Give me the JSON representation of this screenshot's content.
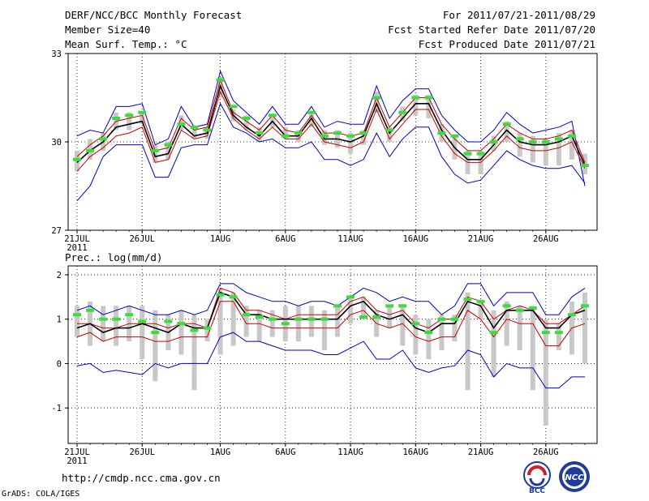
{
  "header": {
    "title": "DERF/NCC/BCC Monthly Forecast",
    "member": "Member Size=40",
    "variable": "Mean Surf. Temp.: °C",
    "period": "For 2011/07/21-2011/08/29",
    "start": "Fcst Started Refer Date 2011/07/20",
    "produced": "Fcst Produced Date 2011/07/21"
  },
  "footer": {
    "url": "http://cmdp.ncc.cma.gov.cn",
    "grads": "GrADS: COLA/IGES",
    "logo_bcc": "BCC",
    "logo_ncc": "NCC"
  },
  "colors": {
    "range": "#0000cc",
    "std": "#cc0000",
    "mean": "#000000",
    "member": "#3ddc3d",
    "box": "#c8c8c8",
    "grid": "#000000"
  },
  "chart_data": [
    {
      "type": "line",
      "title": "Mean Surf. Temp.: °C",
      "x_days": 40,
      "x_ticks": [
        {
          "day": 0,
          "label": "21JUL"
        },
        {
          "day": 5,
          "label": "26JUL"
        },
        {
          "day": 11,
          "label": "1AUG"
        },
        {
          "day": 16,
          "label": "6AUG"
        },
        {
          "day": 21,
          "label": "11AUG"
        },
        {
          "day": 26,
          "label": "16AUG"
        },
        {
          "day": 31,
          "label": "21AUG"
        },
        {
          "day": 36,
          "label": "26AUG"
        }
      ],
      "x_year": "2011",
      "ylim": [
        27,
        33
      ],
      "y_ticks": [
        {
          "v": 27,
          "label": "27"
        },
        {
          "v": 30,
          "label": "30"
        },
        {
          "v": 33,
          "label": "33"
        }
      ],
      "series": [
        {
          "name": "max",
          "values": [
            30.2,
            30.4,
            30.3,
            31.2,
            31.2,
            31.3,
            29.9,
            30.1,
            31.2,
            30.5,
            30.6,
            32.4,
            31.4,
            31.0,
            30.6,
            31.2,
            30.6,
            30.6,
            31.2,
            30.5,
            30.7,
            30.6,
            30.6,
            31.9,
            30.8,
            31.4,
            31.8,
            31.8,
            30.9,
            30.4,
            30.0,
            30.0,
            30.4,
            31.0,
            30.6,
            30.3,
            30.4,
            30.5,
            30.7,
            28.5
          ]
        },
        {
          "name": "upper_std",
          "values": [
            29.5,
            29.9,
            30.2,
            30.7,
            30.8,
            30.9,
            29.7,
            29.8,
            30.8,
            30.4,
            30.5,
            32.1,
            31.0,
            30.7,
            30.4,
            30.9,
            30.4,
            30.3,
            30.9,
            30.3,
            30.3,
            30.2,
            30.3,
            31.5,
            30.5,
            31.0,
            31.5,
            31.5,
            30.6,
            30.1,
            29.7,
            29.7,
            30.1,
            30.6,
            30.3,
            30.1,
            30.1,
            30.2,
            30.4,
            29.3
          ]
        },
        {
          "name": "mean",
          "values": [
            29.3,
            29.7,
            30.0,
            30.5,
            30.6,
            30.7,
            29.5,
            29.6,
            30.6,
            30.2,
            30.3,
            31.9,
            30.9,
            30.5,
            30.2,
            30.7,
            30.2,
            30.2,
            30.8,
            30.1,
            30.1,
            30.0,
            30.2,
            31.3,
            30.3,
            30.8,
            31.3,
            31.3,
            30.4,
            29.8,
            29.4,
            29.4,
            29.9,
            30.4,
            30.0,
            29.9,
            29.9,
            30.0,
            30.2,
            29.2
          ]
        },
        {
          "name": "lower_std",
          "values": [
            29.0,
            29.5,
            29.8,
            30.2,
            30.3,
            30.5,
            29.3,
            29.4,
            30.4,
            30.1,
            30.2,
            31.7,
            30.8,
            30.4,
            30.1,
            30.5,
            30.1,
            30.1,
            30.6,
            30.0,
            29.9,
            29.8,
            30.0,
            31.1,
            30.1,
            30.6,
            31.1,
            31.1,
            30.2,
            29.6,
            29.3,
            29.3,
            29.7,
            30.2,
            29.8,
            29.7,
            29.7,
            29.8,
            30.0,
            29.1
          ]
        },
        {
          "name": "min",
          "values": [
            28.0,
            28.5,
            29.5,
            29.9,
            29.9,
            29.9,
            28.8,
            28.8,
            29.8,
            29.9,
            29.9,
            31.3,
            30.5,
            30.3,
            30.0,
            30.1,
            29.8,
            29.8,
            30.0,
            29.4,
            29.4,
            29.2,
            29.4,
            30.3,
            29.5,
            30.1,
            30.5,
            30.5,
            29.5,
            28.9,
            28.6,
            28.7,
            29.2,
            29.7,
            29.4,
            29.2,
            29.1,
            29.1,
            29.2,
            28.6
          ]
        },
        {
          "name": "members",
          "values": [
            29.4,
            29.7,
            30.1,
            30.8,
            30.9,
            31.0,
            29.7,
            29.9,
            30.6,
            30.5,
            30.4,
            32.1,
            31.2,
            30.8,
            30.3,
            30.9,
            30.2,
            30.3,
            31.0,
            30.2,
            30.3,
            30.2,
            30.3,
            31.5,
            30.4,
            31.0,
            31.5,
            31.5,
            30.3,
            30.2,
            29.6,
            29.6,
            30.0,
            30.6,
            30.1,
            30.0,
            30.0,
            30.1,
            30.2,
            29.2
          ]
        },
        {
          "name": "box_low",
          "values": [
            29.0,
            29.4,
            29.7,
            30.4,
            30.4,
            30.6,
            29.3,
            29.4,
            30.4,
            30.1,
            30.1,
            31.5,
            30.7,
            30.4,
            30.0,
            30.5,
            30.1,
            30.0,
            30.5,
            29.9,
            29.8,
            29.6,
            29.9,
            31.0,
            30.0,
            30.7,
            30.9,
            30.8,
            30.0,
            29.4,
            28.9,
            28.9,
            29.7,
            30.0,
            29.5,
            29.3,
            29.2,
            29.2,
            29.4,
            28.9
          ]
        },
        {
          "name": "box_high",
          "values": [
            29.7,
            30.1,
            30.3,
            31.0,
            31.0,
            31.0,
            29.9,
            30.0,
            30.9,
            30.5,
            30.5,
            32.2,
            31.1,
            30.9,
            30.5,
            30.9,
            30.5,
            30.4,
            31.0,
            30.4,
            30.4,
            30.3,
            30.4,
            31.7,
            30.5,
            31.2,
            31.6,
            31.6,
            30.6,
            30.2,
            29.7,
            29.7,
            30.2,
            30.7,
            30.3,
            30.2,
            30.1,
            30.3,
            30.4,
            29.6
          ]
        }
      ]
    },
    {
      "type": "line",
      "title": "Prec.: log(mm/d)",
      "x_days": 40,
      "x_ticks": [
        {
          "day": 0,
          "label": "21JUL"
        },
        {
          "day": 5,
          "label": "26JUL"
        },
        {
          "day": 11,
          "label": "1AUG"
        },
        {
          "day": 16,
          "label": "6AUG"
        },
        {
          "day": 21,
          "label": "11AUG"
        },
        {
          "day": 26,
          "label": "16AUG"
        },
        {
          "day": 31,
          "label": "21AUG"
        },
        {
          "day": 36,
          "label": "26AUG"
        }
      ],
      "x_year": "2011",
      "ylim": [
        -1.8,
        2.2
      ],
      "y_ticks": [
        {
          "v": 2,
          "label": "2"
        },
        {
          "v": 1,
          "label": "1"
        },
        {
          "v": 0,
          "label": "0"
        },
        {
          "v": -1,
          "label": "-1"
        }
      ],
      "series": [
        {
          "name": "max",
          "values": [
            1.2,
            1.3,
            1.1,
            1.2,
            1.3,
            1.2,
            1.1,
            1.1,
            1.2,
            1.1,
            1.2,
            1.8,
            1.8,
            1.6,
            1.5,
            1.4,
            1.4,
            1.3,
            1.4,
            1.4,
            1.3,
            1.5,
            1.7,
            1.6,
            1.4,
            1.5,
            1.4,
            1.4,
            1.1,
            1.3,
            1.8,
            1.8,
            1.3,
            1.6,
            1.6,
            1.6,
            1.1,
            1.1,
            1.5,
            1.7
          ]
        },
        {
          "name": "upper_std",
          "values": [
            0.9,
            0.9,
            0.8,
            0.8,
            0.9,
            0.9,
            0.9,
            0.8,
            0.9,
            0.9,
            0.8,
            1.7,
            1.6,
            1.2,
            1.2,
            1.1,
            1.0,
            1.1,
            1.1,
            1.1,
            1.1,
            1.4,
            1.5,
            1.2,
            1.1,
            1.2,
            0.9,
            0.8,
            1.0,
            1.0,
            1.5,
            1.4,
            1.0,
            1.2,
            1.3,
            1.2,
            0.9,
            0.9,
            1.1,
            1.3
          ]
        },
        {
          "name": "mean",
          "values": [
            0.8,
            0.9,
            0.7,
            0.8,
            0.8,
            0.9,
            0.8,
            0.7,
            0.9,
            0.8,
            0.8,
            1.6,
            1.5,
            1.1,
            1.1,
            1.0,
            1.0,
            1.0,
            1.0,
            1.0,
            1.0,
            1.3,
            1.4,
            1.1,
            1.0,
            1.1,
            0.8,
            0.7,
            0.9,
            0.9,
            1.4,
            1.3,
            0.8,
            1.2,
            1.2,
            1.2,
            0.8,
            0.8,
            1.1,
            1.2
          ]
        },
        {
          "name": "lower_std",
          "values": [
            0.6,
            0.7,
            0.5,
            0.6,
            0.6,
            0.6,
            0.5,
            0.5,
            0.6,
            0.6,
            0.6,
            1.4,
            1.4,
            0.9,
            0.9,
            0.8,
            0.8,
            0.8,
            0.8,
            0.8,
            0.8,
            1.1,
            1.2,
            0.9,
            0.8,
            0.9,
            0.6,
            0.5,
            0.6,
            0.6,
            1.2,
            1.0,
            0.6,
            1.0,
            0.9,
            0.9,
            0.4,
            0.4,
            0.8,
            0.9
          ]
        },
        {
          "name": "min",
          "values": [
            -0.05,
            0.0,
            -0.2,
            -0.15,
            -0.2,
            -0.25,
            0.0,
            -0.1,
            0.0,
            0.0,
            0.0,
            0.6,
            0.7,
            0.5,
            0.5,
            0.4,
            0.3,
            0.3,
            0.3,
            0.2,
            0.2,
            0.35,
            0.5,
            0.1,
            0.1,
            0.3,
            -0.1,
            -0.2,
            -0.1,
            -0.05,
            0.3,
            0.2,
            -0.3,
            0.0,
            -0.1,
            -0.1,
            -0.55,
            -0.55,
            -0.3,
            -0.3
          ]
        },
        {
          "name": "members",
          "values": [
            1.1,
            1.2,
            1.0,
            1.0,
            1.1,
            0.95,
            0.7,
            0.95,
            0.9,
            0.75,
            0.8,
            1.55,
            1.5,
            1.1,
            1.05,
            1.0,
            0.9,
            1.0,
            1.0,
            1.0,
            1.3,
            1.5,
            1.05,
            1.05,
            1.3,
            1.3,
            0.9,
            0.7,
            1.0,
            1.0,
            1.45,
            1.4,
            0.7,
            1.3,
            1.2,
            1.25,
            0.7,
            0.7,
            1.1,
            1.3
          ]
        },
        {
          "name": "box_low",
          "values": [
            0.6,
            0.4,
            0.5,
            0.4,
            0.5,
            0.1,
            -0.4,
            0.3,
            0.2,
            -0.6,
            0.5,
            0.2,
            0.4,
            0.6,
            0.5,
            0.6,
            0.5,
            0.5,
            0.6,
            0.3,
            0.6,
            0.9,
            1.0,
            0.6,
            0.8,
            0.4,
            0.2,
            0.1,
            0.3,
            0.5,
            -0.6,
            1.0,
            -0.3,
            0.4,
            0.3,
            -0.6,
            -1.4,
            0.3,
            0.2,
            0.0
          ]
        },
        {
          "name": "box_high",
          "values": [
            1.3,
            1.4,
            1.3,
            1.3,
            1.3,
            1.3,
            1.2,
            1.1,
            1.2,
            1.1,
            1.0,
            1.7,
            1.6,
            1.3,
            1.2,
            1.2,
            1.3,
            1.3,
            1.3,
            1.2,
            1.3,
            1.5,
            1.5,
            1.2,
            1.3,
            1.3,
            1.1,
            1.0,
            1.1,
            1.1,
            1.6,
            1.4,
            1.2,
            1.4,
            1.3,
            1.3,
            1.0,
            0.9,
            1.4,
            1.6
          ]
        }
      ]
    }
  ]
}
